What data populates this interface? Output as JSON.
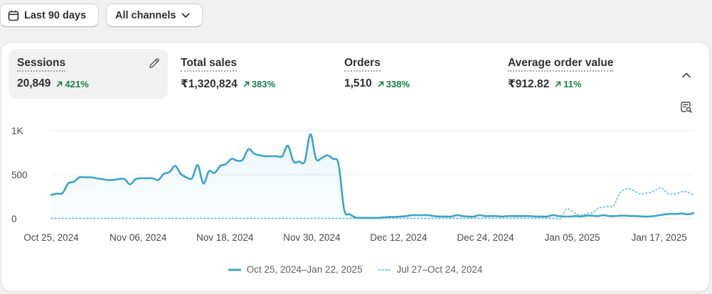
{
  "toolbar": {
    "date_range_label": "Last 90 days",
    "channels_label": "All channels"
  },
  "metrics": [
    {
      "label": "Sessions",
      "value": "20,849",
      "change": "421%",
      "active": true
    },
    {
      "label": "Total sales",
      "value": "₹1,320,824",
      "change": "383%",
      "active": false
    },
    {
      "label": "Orders",
      "value": "1,510",
      "change": "338%",
      "active": false
    },
    {
      "label": "Average order value",
      "value": "₹912.82",
      "change": "11%",
      "active": false
    }
  ],
  "colors": {
    "current": "#3aa5c9",
    "previous": "#7ec8de",
    "positive": "#198049"
  },
  "chart_data": {
    "type": "line",
    "x_tick_labels": [
      "Oct 25, 2024",
      "Nov 06, 2024",
      "Nov 18, 2024",
      "Nov 30, 2024",
      "Dec 12, 2024",
      "Dec 24, 2024",
      "Jan 05, 2025",
      "Jan 17, 2025"
    ],
    "y_tick_labels": [
      "0",
      "500",
      "1K"
    ],
    "ylim": [
      0,
      1000
    ],
    "y_ticks": [
      0,
      500,
      1000
    ],
    "grid": true,
    "legend_position": "bottom",
    "series": [
      {
        "name": "Oct 25, 2024–Jan 22, 2025",
        "style": "solid",
        "values": [
          270,
          285,
          290,
          400,
          420,
          470,
          470,
          470,
          460,
          450,
          440,
          440,
          450,
          450,
          390,
          450,
          460,
          460,
          460,
          440,
          510,
          530,
          600,
          510,
          470,
          460,
          610,
          400,
          540,
          520,
          600,
          620,
          680,
          660,
          670,
          790,
          740,
          720,
          710,
          710,
          710,
          710,
          830,
          650,
          650,
          650,
          960,
          680,
          690,
          720,
          680,
          620,
          100,
          50,
          15,
          10,
          10,
          10,
          10,
          15,
          20,
          20,
          25,
          30,
          40,
          40,
          40,
          40,
          30,
          25,
          25,
          25,
          40,
          30,
          25,
          25,
          40,
          30,
          30,
          30,
          25,
          30,
          30,
          30,
          30,
          30,
          25,
          25,
          25,
          40,
          30,
          25,
          25,
          30,
          25,
          35,
          35,
          30,
          40,
          30,
          30,
          35,
          35,
          30,
          30,
          25,
          25,
          30,
          40,
          50,
          55,
          55,
          60,
          50,
          65
        ]
      },
      {
        "name": "Jul 27–Oct 24, 2024",
        "style": "dotted",
        "values": [
          5,
          5,
          5,
          5,
          5,
          5,
          5,
          5,
          5,
          5,
          5,
          5,
          5,
          5,
          5,
          5,
          5,
          5,
          5,
          5,
          5,
          5,
          5,
          5,
          5,
          5,
          5,
          5,
          5,
          5,
          5,
          5,
          5,
          5,
          5,
          5,
          5,
          5,
          5,
          5,
          5,
          5,
          5,
          5,
          5,
          5,
          5,
          5,
          5,
          5,
          5,
          5,
          5,
          5,
          5,
          5,
          5,
          5,
          5,
          5,
          5,
          5,
          5,
          5,
          5,
          5,
          5,
          5,
          5,
          5,
          5,
          5,
          5,
          5,
          5,
          5,
          5,
          5,
          5,
          5,
          5,
          5,
          5,
          5,
          5,
          5,
          5,
          5,
          5,
          5,
          5,
          5,
          5,
          5,
          5,
          5,
          5,
          110,
          90,
          50,
          40,
          60,
          70,
          120,
          130,
          140,
          150,
          280,
          330,
          340,
          310,
          280,
          290,
          300,
          330,
          350,
          290,
          280,
          290,
          310,
          300,
          270
        ]
      }
    ]
  }
}
